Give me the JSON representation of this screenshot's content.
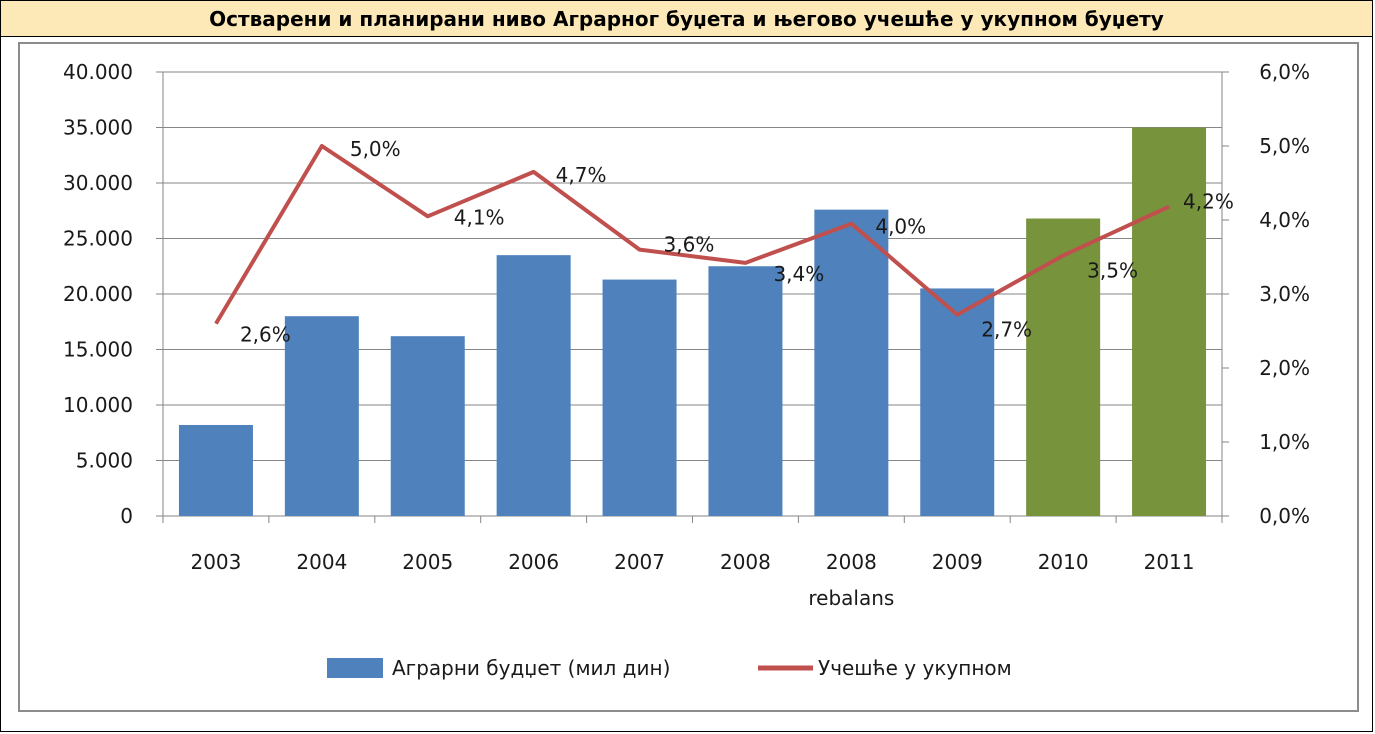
{
  "title": "Остварени и планирани ниво Аграрног буџета и његово учешће у укупном буџету",
  "colors": {
    "bar_actual": "#4f81bd",
    "bar_planned": "#77933c",
    "line": "#c0504d",
    "grid": "#868686",
    "title_bg": "#fde9b7"
  },
  "chart_data": {
    "type": "bar",
    "title": "Остварени и планирани ниво Аграрног буџета и његово учешће у укупном буџету",
    "categories": [
      "2003",
      "2004",
      "2005",
      "2006",
      "2007",
      "2008",
      "2008\nrebalans",
      "2009",
      "2010",
      "2011"
    ],
    "category_lines": [
      [
        "2003"
      ],
      [
        "2004"
      ],
      [
        "2005"
      ],
      [
        "2006"
      ],
      [
        "2007"
      ],
      [
        "2008"
      ],
      [
        "2008",
        "rebalans"
      ],
      [
        "2009"
      ],
      [
        "2010"
      ],
      [
        "2011"
      ]
    ],
    "series": [
      {
        "name": "Аграрни будџет (мил дин)",
        "type": "bar",
        "axis": "left",
        "values": [
          8200,
          18000,
          16200,
          23500,
          21300,
          22500,
          27600,
          20500,
          26800,
          35000
        ],
        "planned_from_index": 8
      },
      {
        "name": "Учешће у укупном",
        "type": "line",
        "axis": "right",
        "values": [
          2.6,
          5.0,
          4.05,
          4.65,
          3.6,
          3.42,
          3.95,
          2.72,
          3.52,
          4.18
        ],
        "labels": [
          "2,6%",
          "5,0%",
          "4,1%",
          "4,7%",
          "3,6%",
          "3,4%",
          "4,0%",
          "2,7%",
          "3,5%",
          "4,2%"
        ]
      }
    ],
    "y_left": {
      "min": 0,
      "max": 40000,
      "step": 5000,
      "tick_labels": [
        "0",
        "5.000",
        "10.000",
        "15.000",
        "20.000",
        "25.000",
        "30.000",
        "35.000",
        "40.000"
      ]
    },
    "y_right": {
      "min": 0,
      "max": 6,
      "step": 1,
      "tick_labels": [
        "0,0%",
        "1,0%",
        "2,0%",
        "3,0%",
        "4,0%",
        "5,0%",
        "6,0%"
      ]
    },
    "grid": true,
    "legend": {
      "position": "bottom",
      "items": [
        {
          "label": "Аграрни будџет (мил дин)",
          "kind": "bar"
        },
        {
          "label": "Учешће у укупном",
          "kind": "line"
        }
      ]
    }
  }
}
